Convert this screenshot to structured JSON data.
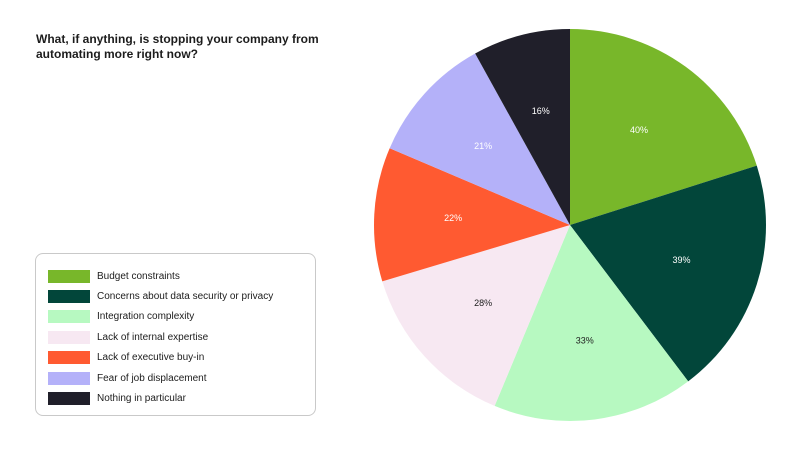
{
  "chart_data": {
    "type": "pie",
    "title": "What, if anything, is stopping your company from automating more right now?",
    "value_suffix": "%",
    "categories": [
      "Budget constraints",
      "Concerns about data security or privacy",
      "Integration complexity",
      "Lack of internal expertise",
      "Lack of executive buy-in",
      "Fear of job displacement",
      "Nothing in particular"
    ],
    "values": [
      40,
      39,
      33,
      28,
      22,
      21,
      16
    ],
    "colors": [
      "#78b72a",
      "#02463a",
      "#b7f9c1",
      "#f7e8f2",
      "#ff5a31",
      "#b4b1f9",
      "#201f2a"
    ],
    "label_colors": [
      "#ffffff",
      "#ffffff",
      "#1c1c1c",
      "#1c1c1c",
      "#ffffff",
      "#ffffff",
      "#ffffff"
    ],
    "start_angle_deg": 0,
    "direction": "clockwise",
    "legend_position": "bottom-left"
  }
}
